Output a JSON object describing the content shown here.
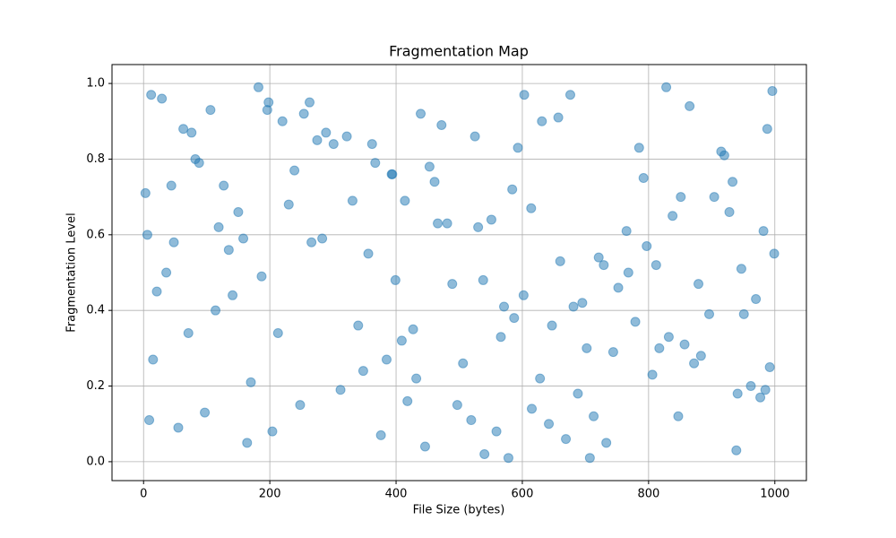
{
  "chart_data": {
    "type": "scatter",
    "title": "Fragmentation Map",
    "x_label": "File Size (bytes)",
    "y_label": "Fragmentation Level",
    "color": "#1f77b4",
    "alpha": 0.5,
    "grid": true,
    "xlim": [
      -50,
      1050
    ],
    "ylim": [
      -0.05,
      1.05
    ],
    "xticks": [
      0,
      200,
      400,
      600,
      800,
      1000
    ],
    "yticks": [
      {
        "value": 0,
        "label": "0.0"
      },
      {
        "value": 0.2,
        "label": "0.2"
      },
      {
        "value": 0.4,
        "label": "0.4"
      },
      {
        "value": 0.6,
        "label": "0.6"
      },
      {
        "value": 0.8,
        "label": "0.8"
      },
      {
        "value": 1,
        "label": "1.0"
      }
    ],
    "x": [
      12,
      847,
      356,
      593,
      71,
      928,
      204,
      681,
      439,
      15,
      765,
      312,
      988,
      127,
      540,
      879,
      263,
      702,
      48,
      615,
      394,
      951,
      170,
      828,
      481,
      36,
      733,
      289,
      566,
      904,
      141,
      657,
      418,
      992,
      82,
      797,
      230,
      519,
      865,
      340,
      6,
      744,
      603,
      187,
      461,
      939,
      275,
      628,
      97,
      812,
      376,
      551,
      970,
      220,
      688,
      453,
      29,
      779,
      331,
      506,
      915,
      158,
      642,
      399,
      857,
      63,
      721,
      248,
      584,
      996,
      114,
      806,
      367,
      530,
      947,
      196,
      669,
      427,
      3,
      752,
      301,
      578,
      883,
      135,
      614,
      472,
      962,
      239,
      695,
      55,
      838,
      409,
      525,
      977,
      182,
      660,
      348,
      792,
      21,
      587,
      446,
      920,
      266,
      713,
      106,
      851,
      385,
      538,
      982,
      213,
      631,
      497,
      44,
      768,
      322,
      559,
      896,
      150,
      676,
      432,
      999,
      88,
      817,
      254,
      602,
      941,
      119,
      707,
      362,
      489,
      872,
      198,
      647,
      414,
      9,
      785,
      283,
      571,
      933,
      164,
      729,
      466,
      985,
      76,
      832,
      393
    ],
    "values": [
      0.97,
      0.12,
      0.55,
      0.83,
      0.34,
      0.66,
      0.08,
      0.41,
      0.92,
      0.27,
      0.61,
      0.19,
      0.88,
      0.73,
      0.02,
      0.47,
      0.95,
      0.3,
      0.58,
      0.14,
      0.76,
      0.39,
      0.21,
      0.99,
      0.63,
      0.5,
      0.05,
      0.87,
      0.33,
      0.7,
      0.44,
      0.91,
      0.16,
      0.25,
      0.8,
      0.57,
      0.68,
      0.11,
      0.94,
      0.36,
      0.6,
      0.29,
      0.97,
      0.49,
      0.74,
      0.03,
      0.85,
      0.22,
      0.13,
      0.52,
      0.07,
      0.64,
      0.43,
      0.9,
      0.18,
      0.78,
      0.96,
      0.37,
      0.69,
      0.26,
      0.82,
      0.59,
      0.1,
      0.48,
      0.31,
      0.88,
      0.54,
      0.15,
      0.72,
      0.98,
      0.4,
      0.23,
      0.79,
      0.62,
      0.51,
      0.93,
      0.06,
      0.35,
      0.71,
      0.46,
      0.84,
      0.01,
      0.28,
      0.56,
      0.67,
      0.89,
      0.2,
      0.77,
      0.42,
      0.09,
      0.65,
      0.32,
      0.86,
      0.17,
      0.99,
      0.53,
      0.24,
      0.75,
      0.45,
      0.38,
      0.04,
      0.81,
      0.58,
      0.12,
      0.93,
      0.7,
      0.27,
      0.48,
      0.61,
      0.34,
      0.9,
      0.15,
      0.73,
      0.5,
      0.86,
      0.08,
      0.39,
      0.66,
      0.97,
      0.22,
      0.55,
      0.79,
      0.3,
      0.92,
      0.44,
      0.18,
      0.62,
      0.01,
      0.84,
      0.47,
      0.26,
      0.95,
      0.36,
      0.69,
      0.11,
      0.83,
      0.59,
      0.41,
      0.74,
      0.05,
      0.52,
      0.63,
      0.19,
      0.87,
      0.33,
      0.76
    ]
  }
}
